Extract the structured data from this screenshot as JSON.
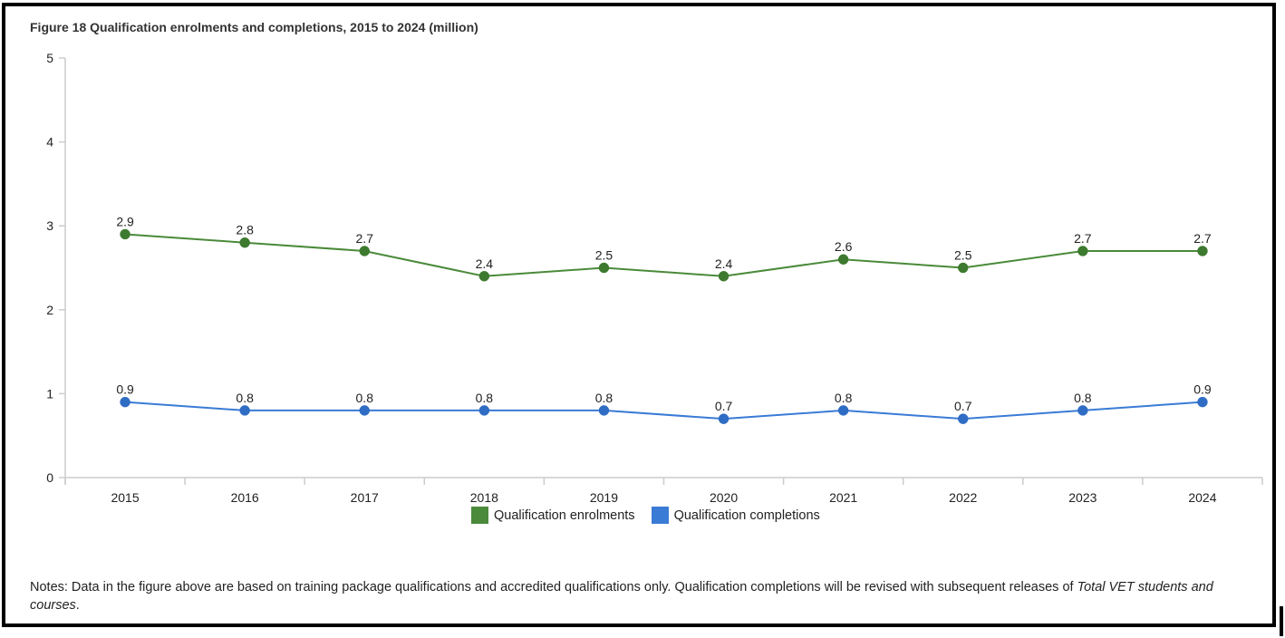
{
  "figure": {
    "title": "Figure 18 Qualification enrolments and completions, 2015 to 2024 (million)",
    "notes_prefix": "Notes: Data in the figure above are based on training package qualifications and accredited qualifications only. Qualification completions will be revised with subsequent releases of ",
    "notes_italic": "Total VET students and courses",
    "notes_suffix": "."
  },
  "colors": {
    "enrolments": "#4a8a3a",
    "enrolments_marker": "#3d7a2f",
    "completions": "#3a7bd5",
    "completions_marker": "#2f6cc4",
    "axis": "#cccccc"
  },
  "chart_data": {
    "type": "line",
    "title": "Figure 18 Qualification enrolments and completions, 2015 to 2024 (million)",
    "xlabel": "",
    "ylabel": "",
    "categories": [
      "2015",
      "2016",
      "2017",
      "2018",
      "2019",
      "2020",
      "2021",
      "2022",
      "2023",
      "2024"
    ],
    "ylim": [
      0,
      5
    ],
    "yticks": [
      0,
      1,
      2,
      3,
      4,
      5
    ],
    "grid": false,
    "legend_position": "bottom",
    "series": [
      {
        "name": "Qualification enrolments",
        "values": [
          2.9,
          2.8,
          2.7,
          2.4,
          2.5,
          2.4,
          2.6,
          2.5,
          2.7,
          2.7
        ],
        "labels": [
          "2.9",
          "2.8",
          "2.7",
          "2.4",
          "2.5",
          "2.4",
          "2.6",
          "2.5",
          "2.7",
          "2.7"
        ]
      },
      {
        "name": "Qualification completions",
        "values": [
          0.9,
          0.8,
          0.8,
          0.8,
          0.8,
          0.7,
          0.8,
          0.7,
          0.8,
          0.9
        ],
        "labels": [
          "0.9",
          "0.8",
          "0.8",
          "0.8",
          "0.8",
          "0.7",
          "0.8",
          "0.7",
          "0.8",
          "0.9"
        ]
      }
    ]
  }
}
